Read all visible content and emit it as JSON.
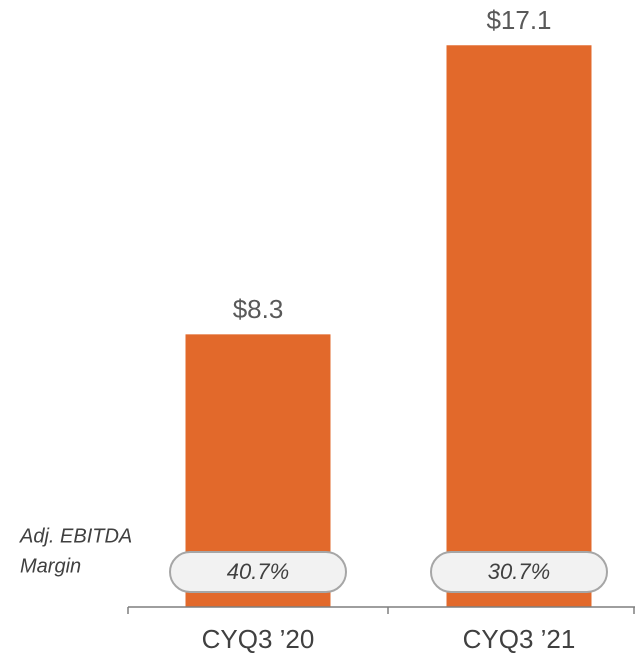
{
  "chart_data": {
    "type": "bar",
    "categories": [
      "CYQ3 ’20",
      "CYQ3 ’21"
    ],
    "values": [
      8.3,
      17.1
    ],
    "value_labels": [
      "$8.3",
      "$17.1"
    ],
    "color": "#e2692b",
    "margin_title": [
      "Adj. EBITDA",
      "Margin"
    ],
    "margins": {
      "values": [
        40.7,
        30.7
      ],
      "value_labels": [
        "40.7%",
        "30.7%"
      ]
    }
  }
}
